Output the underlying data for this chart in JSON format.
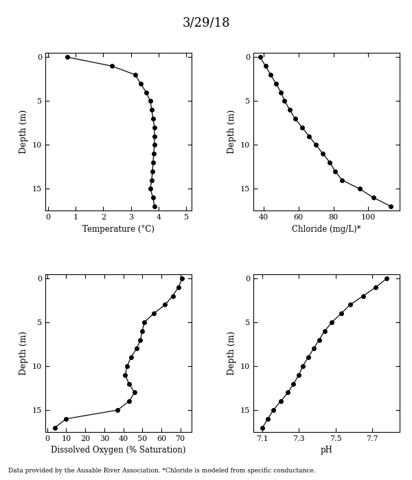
{
  "title": "3/29/18",
  "footer": "Data provided by the Ausable River Association. *Chloride is modeled from specific conductance.",
  "temp": {
    "depth": [
      0,
      1,
      2,
      3,
      4,
      5,
      6,
      7,
      8,
      9,
      10,
      11,
      12,
      13,
      14,
      15,
      16,
      17
    ],
    "values": [
      0.7,
      2.3,
      3.15,
      3.35,
      3.55,
      3.7,
      3.75,
      3.8,
      3.85,
      3.85,
      3.85,
      3.82,
      3.8,
      3.78,
      3.75,
      3.7,
      3.8,
      3.85
    ],
    "xlabel": "Temperature (°C)",
    "xlim": [
      -0.1,
      5.2
    ],
    "xticks": [
      0,
      1,
      2,
      3,
      4,
      5
    ]
  },
  "chloride": {
    "depth": [
      0,
      1,
      2,
      3,
      4,
      5,
      6,
      7,
      8,
      9,
      10,
      11,
      12,
      13,
      14,
      15,
      16,
      17
    ],
    "values": [
      38,
      41,
      44,
      47,
      50,
      52,
      55,
      58,
      62,
      66,
      70,
      74,
      78,
      81,
      85,
      95,
      103,
      113
    ],
    "xlabel": "Chloride (mg/L)*",
    "xlim": [
      34,
      118
    ],
    "xticks": [
      40,
      60,
      80,
      100
    ]
  },
  "do": {
    "depth": [
      0,
      1,
      2,
      3,
      4,
      5,
      6,
      7,
      8,
      9,
      10,
      11,
      12,
      13,
      14,
      15,
      16,
      17
    ],
    "values": [
      71,
      69,
      66,
      62,
      56,
      51,
      50,
      49,
      47,
      44,
      42,
      41,
      43,
      46,
      43,
      37,
      10,
      4
    ],
    "xlabel": "Dissolved Oxygen (% Saturation)",
    "xlim": [
      -1,
      76
    ],
    "xticks": [
      0,
      10,
      20,
      30,
      40,
      50,
      60,
      70
    ]
  },
  "ph": {
    "depth": [
      0,
      1,
      2,
      3,
      4,
      5,
      6,
      7,
      8,
      9,
      10,
      11,
      12,
      13,
      14,
      15,
      16,
      17
    ],
    "values": [
      7.78,
      7.72,
      7.65,
      7.58,
      7.53,
      7.48,
      7.44,
      7.41,
      7.38,
      7.35,
      7.32,
      7.3,
      7.27,
      7.24,
      7.2,
      7.16,
      7.13,
      7.1
    ],
    "xlabel": "pH",
    "xlim": [
      7.05,
      7.85
    ],
    "xticks": [
      7.1,
      7.3,
      7.5,
      7.7
    ]
  },
  "depth_lim": [
    17.5,
    -0.5
  ],
  "yticks": [
    0,
    5,
    10,
    15
  ],
  "ylabel": "Depth (m)",
  "bg_color": "#ffffff",
  "line_color": "#000000",
  "marker": "o",
  "markersize": 4,
  "linewidth": 0.9
}
